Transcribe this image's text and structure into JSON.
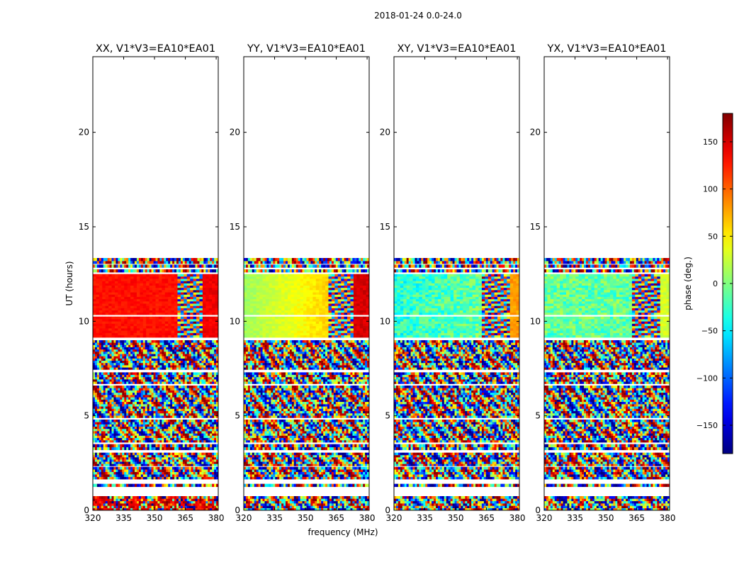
{
  "suptitle": "2018-01-24 0.0-24.0",
  "colormap": "jet",
  "chart_data": {
    "type": "heatmap",
    "xlabel": "frequency (MHz)",
    "ylabel": "UT (hours)",
    "xlim": [
      320,
      381
    ],
    "ylim": [
      0,
      24
    ],
    "xticks": [
      320,
      335,
      350,
      365,
      380
    ],
    "yticks": [
      0,
      5,
      10,
      15,
      20
    ],
    "colorbar": {
      "label": "phase (deg.)",
      "range": [
        -180,
        180
      ],
      "ticks": [
        -150,
        -100,
        -50,
        0,
        50,
        100,
        150
      ],
      "tick_labels": [
        "−150",
        "−100",
        "−50",
        "0",
        "50",
        "100",
        "150"
      ]
    },
    "data_rows_hours": [
      [
        0.0,
        0.75
      ],
      [
        1.25,
        1.4
      ],
      [
        1.65,
        2.3
      ],
      [
        2.35,
        3.05
      ],
      [
        3.2,
        3.5
      ],
      [
        3.6,
        4.8
      ],
      [
        4.9,
        6.6
      ],
      [
        6.7,
        7.3
      ],
      [
        7.45,
        9.0
      ],
      [
        9.15,
        10.25
      ],
      [
        10.35,
        12.5
      ],
      [
        12.6,
        12.75
      ],
      [
        12.85,
        13.0
      ],
      [
        13.05,
        13.35
      ]
    ],
    "band_boundaries_mhz": [
      361,
      374
    ],
    "panels": [
      {
        "title": "XX, V1*V3=EA10*EA01",
        "smooth_phase_deg": [
          130,
          130,
          140
        ],
        "noisy_band_mhz": [
          361,
          374
        ]
      },
      {
        "title": "YY, V1*V3=EA10*EA01",
        "smooth_phase_deg": [
          10,
          60,
          150
        ],
        "noisy_band_mhz": [
          361,
          374
        ]
      },
      {
        "title": "XY, V1*V3=EA10*EA01",
        "smooth_phase_deg": [
          -30,
          -10,
          80
        ],
        "noisy_band_mhz": [
          363,
          376
        ]
      },
      {
        "title": "YX, V1*V3=EA10*EA01",
        "smooth_phase_deg": [
          -10,
          -10,
          30
        ],
        "noisy_band_mhz": [
          363,
          376
        ]
      }
    ]
  }
}
